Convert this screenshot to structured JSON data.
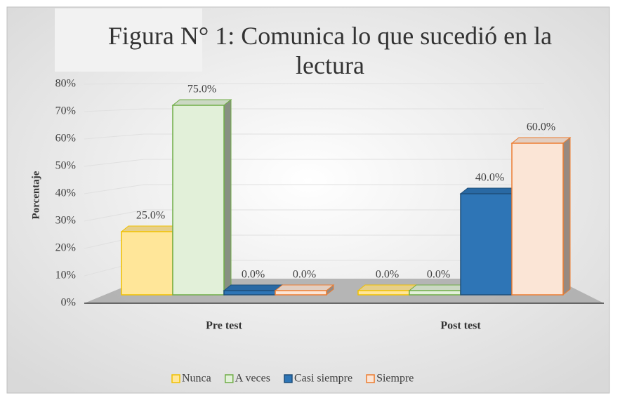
{
  "chart_data": {
    "type": "bar3d",
    "title": "Figura N° 1: Comunica lo que sucedió en la lectura",
    "y_label": "Porcentaje",
    "categories": [
      "Pre test",
      "Post test"
    ],
    "series": [
      {
        "name": "Nunca",
        "color": "#ffe699",
        "values": [
          25,
          0
        ],
        "value_labels": [
          "25.0%",
          "0.0%"
        ]
      },
      {
        "name": "A veces",
        "color": "#e2f0d9",
        "values": [
          75,
          0
        ],
        "value_labels": [
          "75.0%",
          "0.0%"
        ]
      },
      {
        "name": "Casi siempre",
        "color": "#2e75b6",
        "values": [
          0,
          40
        ],
        "value_labels": [
          "0.0%",
          "40.0%"
        ]
      },
      {
        "name": "Siempre",
        "color": "#fbe5d6",
        "values": [
          0,
          60
        ],
        "value_labels": [
          "0.0%",
          "60.0%"
        ]
      }
    ],
    "edge_colors": [
      "#f0c000",
      "#70ad47",
      "#1f4e79",
      "#ed7d31"
    ],
    "ylim": [
      0,
      80
    ],
    "yticks": [
      {
        "value": 0,
        "label": "0%"
      },
      {
        "value": 10,
        "label": "10%"
      },
      {
        "value": 20,
        "label": "20%"
      },
      {
        "value": 30,
        "label": "30%"
      },
      {
        "value": 40,
        "label": "40%"
      },
      {
        "value": 50,
        "label": "50%"
      },
      {
        "value": 60,
        "label": "60%"
      },
      {
        "value": 70,
        "label": "70%"
      },
      {
        "value": 80,
        "label": "80%"
      }
    ],
    "grid": true
  }
}
